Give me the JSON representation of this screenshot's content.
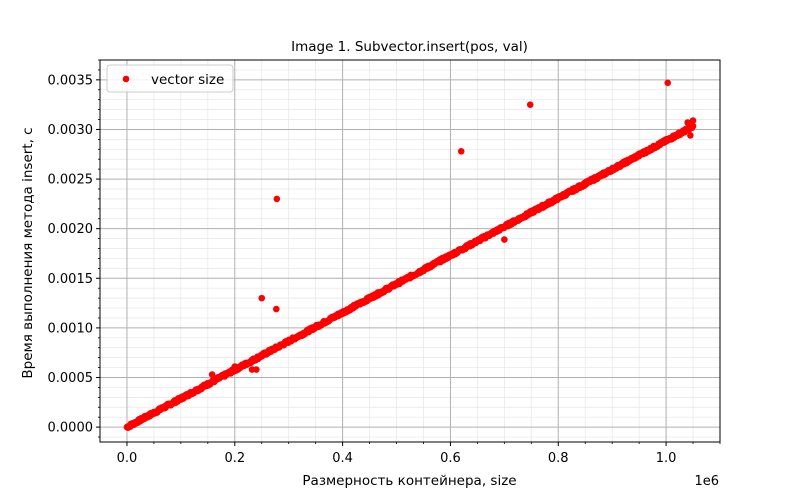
{
  "chart_data": {
    "type": "scatter",
    "title": "Image 1. Subvector.insert(pos, val)",
    "xlabel": "Размерность контейнера, size",
    "ylabel": "Время выполнения метода insert, с",
    "x_offset_label": "1e6",
    "xlim": [
      -50000,
      1100000
    ],
    "ylim": [
      -0.00015,
      0.0037
    ],
    "x_ticks": [
      0.0,
      0.2,
      0.4,
      0.6,
      0.8,
      1.0
    ],
    "x_tick_labels": [
      "0.0",
      "0.2",
      "0.4",
      "0.6",
      "0.8",
      "1.0"
    ],
    "y_ticks": [
      0.0,
      0.0005,
      0.001,
      0.0015,
      0.002,
      0.0025,
      0.003,
      0.0035
    ],
    "y_tick_labels": [
      "0.0000",
      "0.0005",
      "0.0010",
      "0.0015",
      "0.0020",
      "0.0025",
      "0.0030",
      "0.0035"
    ],
    "grid": true,
    "minor_grid": true,
    "legend_position": "top-left",
    "series": [
      {
        "name": "vector size",
        "color": "#ff0000",
        "trend": {
          "x_start": 0,
          "x_end": 1050000,
          "y_start": 0.0,
          "y_end": 0.00303,
          "count": 1050
        },
        "outliers": [
          {
            "x": 250000,
            "y": 0.0013
          },
          {
            "x": 277000,
            "y": 0.00119
          },
          {
            "x": 278000,
            "y": 0.0023
          },
          {
            "x": 232000,
            "y": 0.00058
          },
          {
            "x": 240000,
            "y": 0.00058
          },
          {
            "x": 620000,
            "y": 0.00278
          },
          {
            "x": 748000,
            "y": 0.00325
          },
          {
            "x": 1003000,
            "y": 0.00347
          },
          {
            "x": 700000,
            "y": 0.00189
          },
          {
            "x": 1045000,
            "y": 0.00294
          },
          {
            "x": 1050000,
            "y": 0.00309
          },
          {
            "x": 1040000,
            "y": 0.00307
          },
          {
            "x": 158000,
            "y": 0.00053
          },
          {
            "x": 200000,
            "y": 0.00061
          }
        ]
      }
    ]
  }
}
